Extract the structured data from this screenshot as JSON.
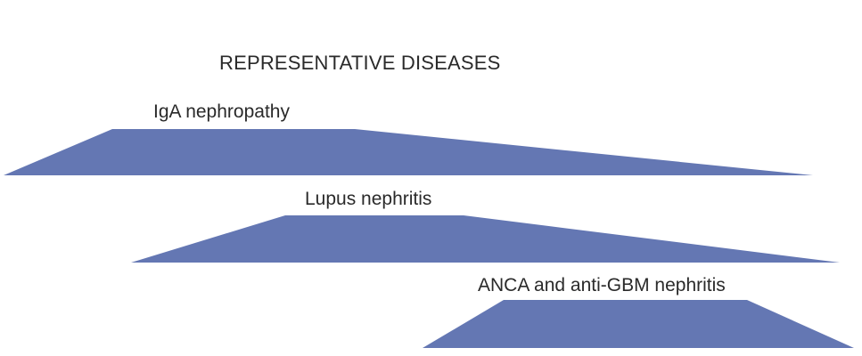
{
  "heading": "REPRESENTATIVE DISEASES",
  "colors": {
    "shape_fill": "#6477b3",
    "text": "#2a2a2a"
  },
  "diseases": [
    {
      "label": "IgA nephropathy"
    },
    {
      "label": "Lupus nephritis"
    },
    {
      "label": "ANCA and anti-GBM nephritis"
    }
  ]
}
